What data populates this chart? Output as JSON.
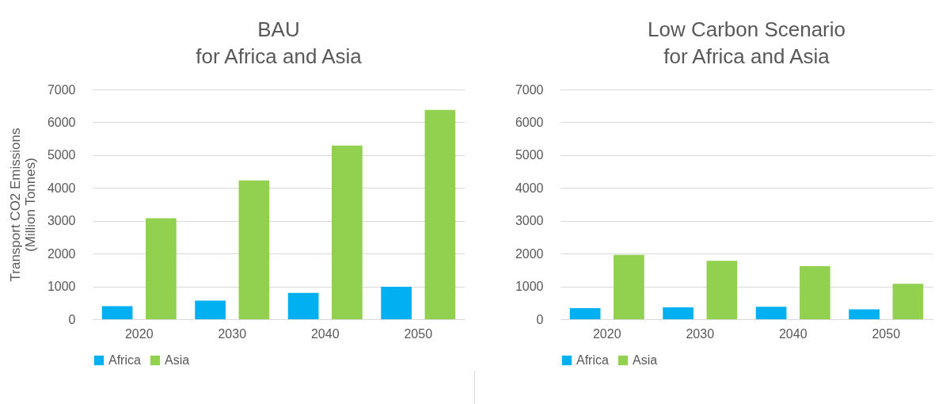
{
  "chart_data": [
    {
      "type": "bar",
      "title": "BAU\nfor Africa and Asia",
      "ylabel": "Transport CO2 Emissions\n(Million Tonnes)",
      "categories": [
        "2020",
        "2030",
        "2040",
        "2050"
      ],
      "series": [
        {
          "name": "Africa",
          "color": "#00b0f0",
          "values": [
            400,
            570,
            800,
            990
          ]
        },
        {
          "name": "Asia",
          "color": "#92d050",
          "values": [
            3080,
            4230,
            5290,
            6380
          ]
        }
      ],
      "ylim": [
        0,
        7000
      ],
      "yticks": [
        0,
        1000,
        2000,
        3000,
        4000,
        5000,
        6000,
        7000
      ],
      "grid": "y",
      "legend": "bottom"
    },
    {
      "type": "bar",
      "title": "Low Carbon Scenario\nfor Africa and Asia",
      "categories": [
        "2020",
        "2030",
        "2040",
        "2050"
      ],
      "series": [
        {
          "name": "Africa",
          "color": "#00b0f0",
          "values": [
            340,
            360,
            380,
            300
          ]
        },
        {
          "name": "Asia",
          "color": "#92d050",
          "values": [
            1960,
            1780,
            1620,
            1080
          ]
        }
      ],
      "ylim": [
        0,
        7000
      ],
      "yticks": [
        0,
        1000,
        2000,
        3000,
        4000,
        5000,
        6000,
        7000
      ],
      "grid": "y",
      "legend": "bottom"
    }
  ]
}
